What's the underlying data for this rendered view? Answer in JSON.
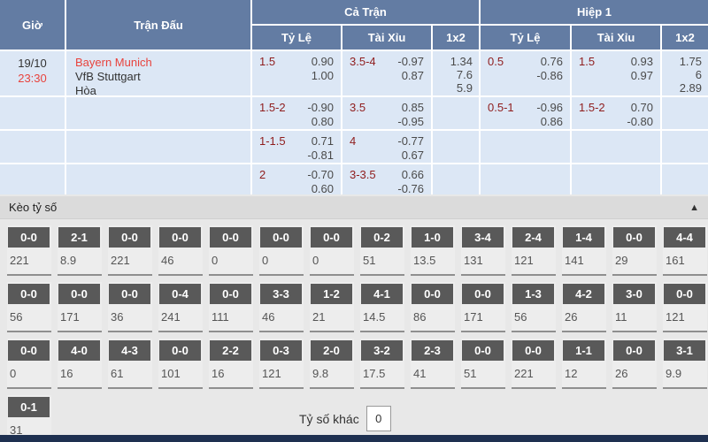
{
  "colors": {
    "header_bg": "#637ca3",
    "row_bg": "#dce7f5",
    "red_text": "#e8433d",
    "handicap_text": "#8f1d1d",
    "chip_bg": "#595959",
    "section_bg": "#dbdbdb",
    "bottom_bar": "#1e3050"
  },
  "header": {
    "time": "Giờ",
    "match": "Trận Đấu",
    "full_match": "Cả Trận",
    "first_half": "Hiệp 1",
    "handicap": "Tỷ Lệ",
    "over_under": "Tài Xỉu",
    "one_x_two": "1x2"
  },
  "match": {
    "date": "19/10",
    "time": "23:30",
    "home": "Bayern Munich",
    "away": "VfB Stuttgart",
    "draw": "Hòa"
  },
  "odds_rows": [
    {
      "full": {
        "hc": "1.5",
        "hc_odds": [
          "0.90",
          "1.00"
        ],
        "ou": "3.5-4",
        "ou_odds": [
          "-0.97",
          "0.87"
        ],
        "x12": [
          "1.34",
          "7.6",
          "5.9"
        ]
      },
      "half": {
        "hc": "0.5",
        "hc_odds": [
          "0.76",
          "-0.86"
        ],
        "ou": "1.5",
        "ou_odds": [
          "0.93",
          "0.97"
        ],
        "x12": [
          "1.75",
          "6",
          "2.89"
        ]
      }
    },
    {
      "full": {
        "hc": "1.5-2",
        "hc_odds": [
          "-0.90",
          "0.80"
        ],
        "ou": "3.5",
        "ou_odds": [
          "0.85",
          "-0.95"
        ],
        "x12": []
      },
      "half": {
        "hc": "0.5-1",
        "hc_odds": [
          "-0.96",
          "0.86"
        ],
        "ou": "1.5-2",
        "ou_odds": [
          "0.70",
          "-0.80"
        ],
        "x12": []
      }
    },
    {
      "full": {
        "hc": "1-1.5",
        "hc_odds": [
          "0.71",
          "-0.81"
        ],
        "ou": "4",
        "ou_odds": [
          "-0.77",
          "0.67"
        ],
        "x12": []
      },
      "half": null
    },
    {
      "full": {
        "hc": "2",
        "hc_odds": [
          "-0.70",
          "0.60"
        ],
        "ou": "3-3.5",
        "ou_odds": [
          "0.66",
          "-0.76"
        ],
        "x12": []
      },
      "half": null
    }
  ],
  "score_section": {
    "title": "Kèo tỷ số",
    "collapse_icon": "▲",
    "other_label": "Tỷ số khác",
    "other_value": "0",
    "rows": [
      [
        {
          "score": "0-0",
          "odds": "221"
        },
        {
          "score": "2-1",
          "odds": "8.9"
        },
        {
          "score": "0-0",
          "odds": "221"
        },
        {
          "score": "0-0",
          "odds": "46"
        },
        {
          "score": "0-0",
          "odds": "0"
        },
        {
          "score": "0-0",
          "odds": "0"
        },
        {
          "score": "0-0",
          "odds": "0"
        },
        {
          "score": "0-2",
          "odds": "51"
        },
        {
          "score": "1-0",
          "odds": "13.5"
        },
        {
          "score": "3-4",
          "odds": "131"
        },
        {
          "score": "2-4",
          "odds": "121"
        },
        {
          "score": "1-4",
          "odds": "141"
        },
        {
          "score": "0-0",
          "odds": "29"
        },
        {
          "score": "4-4",
          "odds": "161"
        }
      ],
      [
        {
          "score": "0-0",
          "odds": "56"
        },
        {
          "score": "0-0",
          "odds": "171"
        },
        {
          "score": "0-0",
          "odds": "36"
        },
        {
          "score": "0-4",
          "odds": "241"
        },
        {
          "score": "0-0",
          "odds": "111"
        },
        {
          "score": "3-3",
          "odds": "46"
        },
        {
          "score": "1-2",
          "odds": "21"
        },
        {
          "score": "4-1",
          "odds": "14.5"
        },
        {
          "score": "0-0",
          "odds": "86"
        },
        {
          "score": "0-0",
          "odds": "171"
        },
        {
          "score": "1-3",
          "odds": "56"
        },
        {
          "score": "4-2",
          "odds": "26"
        },
        {
          "score": "3-0",
          "odds": "11"
        },
        {
          "score": "0-0",
          "odds": "121"
        }
      ],
      [
        {
          "score": "0-0",
          "odds": "0"
        },
        {
          "score": "4-0",
          "odds": "16"
        },
        {
          "score": "4-3",
          "odds": "61"
        },
        {
          "score": "0-0",
          "odds": "101"
        },
        {
          "score": "2-2",
          "odds": "16"
        },
        {
          "score": "0-3",
          "odds": "121"
        },
        {
          "score": "2-0",
          "odds": "9.8"
        },
        {
          "score": "3-2",
          "odds": "17.5"
        },
        {
          "score": "2-3",
          "odds": "41"
        },
        {
          "score": "0-0",
          "odds": "51"
        },
        {
          "score": "0-0",
          "odds": "221"
        },
        {
          "score": "1-1",
          "odds": "12"
        },
        {
          "score": "0-0",
          "odds": "26"
        },
        {
          "score": "3-1",
          "odds": "9.9"
        }
      ],
      [
        {
          "score": "0-1",
          "odds": "31"
        }
      ]
    ]
  }
}
